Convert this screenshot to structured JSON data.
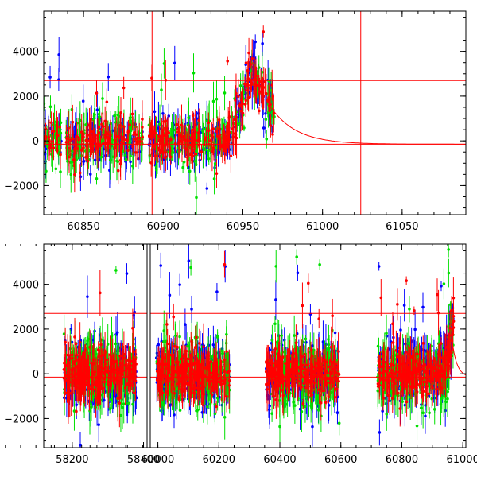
{
  "chart_data": [
    {
      "type": "scatter",
      "panel": "top",
      "xlim": [
        60825,
        61090
      ],
      "ylim": [
        -3300,
        5800
      ],
      "x_ticks": [
        60850,
        60900,
        60950,
        61000,
        61050
      ],
      "x_tick_labels": [
        "60850",
        "60900",
        "60950",
        "61000",
        "61050"
      ],
      "y_ticks": [
        -2000,
        0,
        2000,
        4000
      ],
      "y_tick_labels": [
        "−2000",
        "0",
        "2000",
        "4000"
      ],
      "hlines": [
        2700,
        -150
      ],
      "vlines": [
        60893,
        61024
      ],
      "model_curve": {
        "peak_x": 60965,
        "peak_y": 1800,
        "decay_days": 16,
        "baseline": -150
      },
      "gaps": [
        [
          60836,
          60839
        ],
        [
          60887,
          60891
        ]
      ],
      "series": [
        {
          "color": "#0000ff",
          "data_start": 60825,
          "data_end": 60970,
          "scatter": 600
        },
        {
          "color": "#00e000",
          "data_start": 60825,
          "data_end": 60970,
          "scatter": 650
        },
        {
          "color": "#ff0000",
          "data_start": 60825,
          "data_end": 60970,
          "scatter": 450
        }
      ],
      "outburst": {
        "start": 60938,
        "peak": 60955,
        "end": 60970,
        "peak_value": 3200
      },
      "grid": false
    },
    {
      "type": "scatter",
      "panel": "bottom",
      "xlim": [
        58120,
        61010
      ],
      "ylim": [
        -3300,
        5800
      ],
      "x_ticks": [
        58200,
        58400,
        60000,
        60200,
        60400,
        60600,
        60800,
        61000
      ],
      "x_tick_labels": [
        "58200",
        "58400",
        "60000",
        "60200",
        "60400",
        "60600",
        "60800",
        "61000"
      ],
      "y_ticks": [
        -2000,
        0,
        2000,
        4000
      ],
      "y_tick_labels": [
        "−2000",
        "0",
        "2000",
        "4000"
      ],
      "hlines": [
        2700,
        -150
      ],
      "segments": [
        {
          "range": [
            58120,
            58410
          ],
          "data": [
            58175,
            58380
          ]
        },
        {
          "range": [
            59975,
            61010
          ],
          "data": [
            59995,
            60235
          ]
        },
        {
          "range": [
            59975,
            61010
          ],
          "data": [
            60355,
            60595
          ]
        },
        {
          "range": [
            59975,
            61010
          ],
          "data": [
            60720,
            60970
          ]
        }
      ],
      "break_x": 58410,
      "series": [
        {
          "color": "#0000ff",
          "scatter": 700
        },
        {
          "color": "#00e000",
          "scatter": 750
        },
        {
          "color": "#ff0000",
          "scatter": 500
        }
      ],
      "grid": false
    }
  ]
}
